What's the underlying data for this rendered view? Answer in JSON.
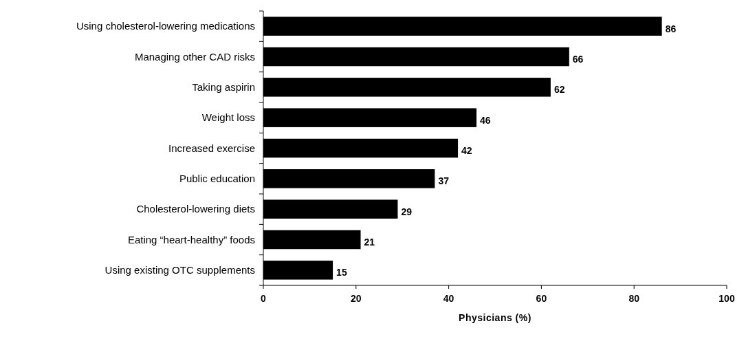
{
  "chart_data": {
    "type": "bar",
    "orientation": "horizontal",
    "xlabel": "Physicians (%)",
    "categories": [
      "Using cholesterol-lowering medications",
      "Managing other CAD risks",
      "Taking aspirin",
      "Weight loss",
      "Increased exercise",
      "Public education",
      "Cholesterol-lowering diets",
      "Eating “heart-healthy” foods",
      "Using existing OTC supplements"
    ],
    "values": [
      86,
      66,
      62,
      46,
      42,
      37,
      29,
      21,
      15
    ],
    "color": "#000000",
    "xlim": [
      0,
      100
    ],
    "xticks": [
      0,
      20,
      40,
      60,
      80,
      100
    ],
    "data_labels": true
  }
}
